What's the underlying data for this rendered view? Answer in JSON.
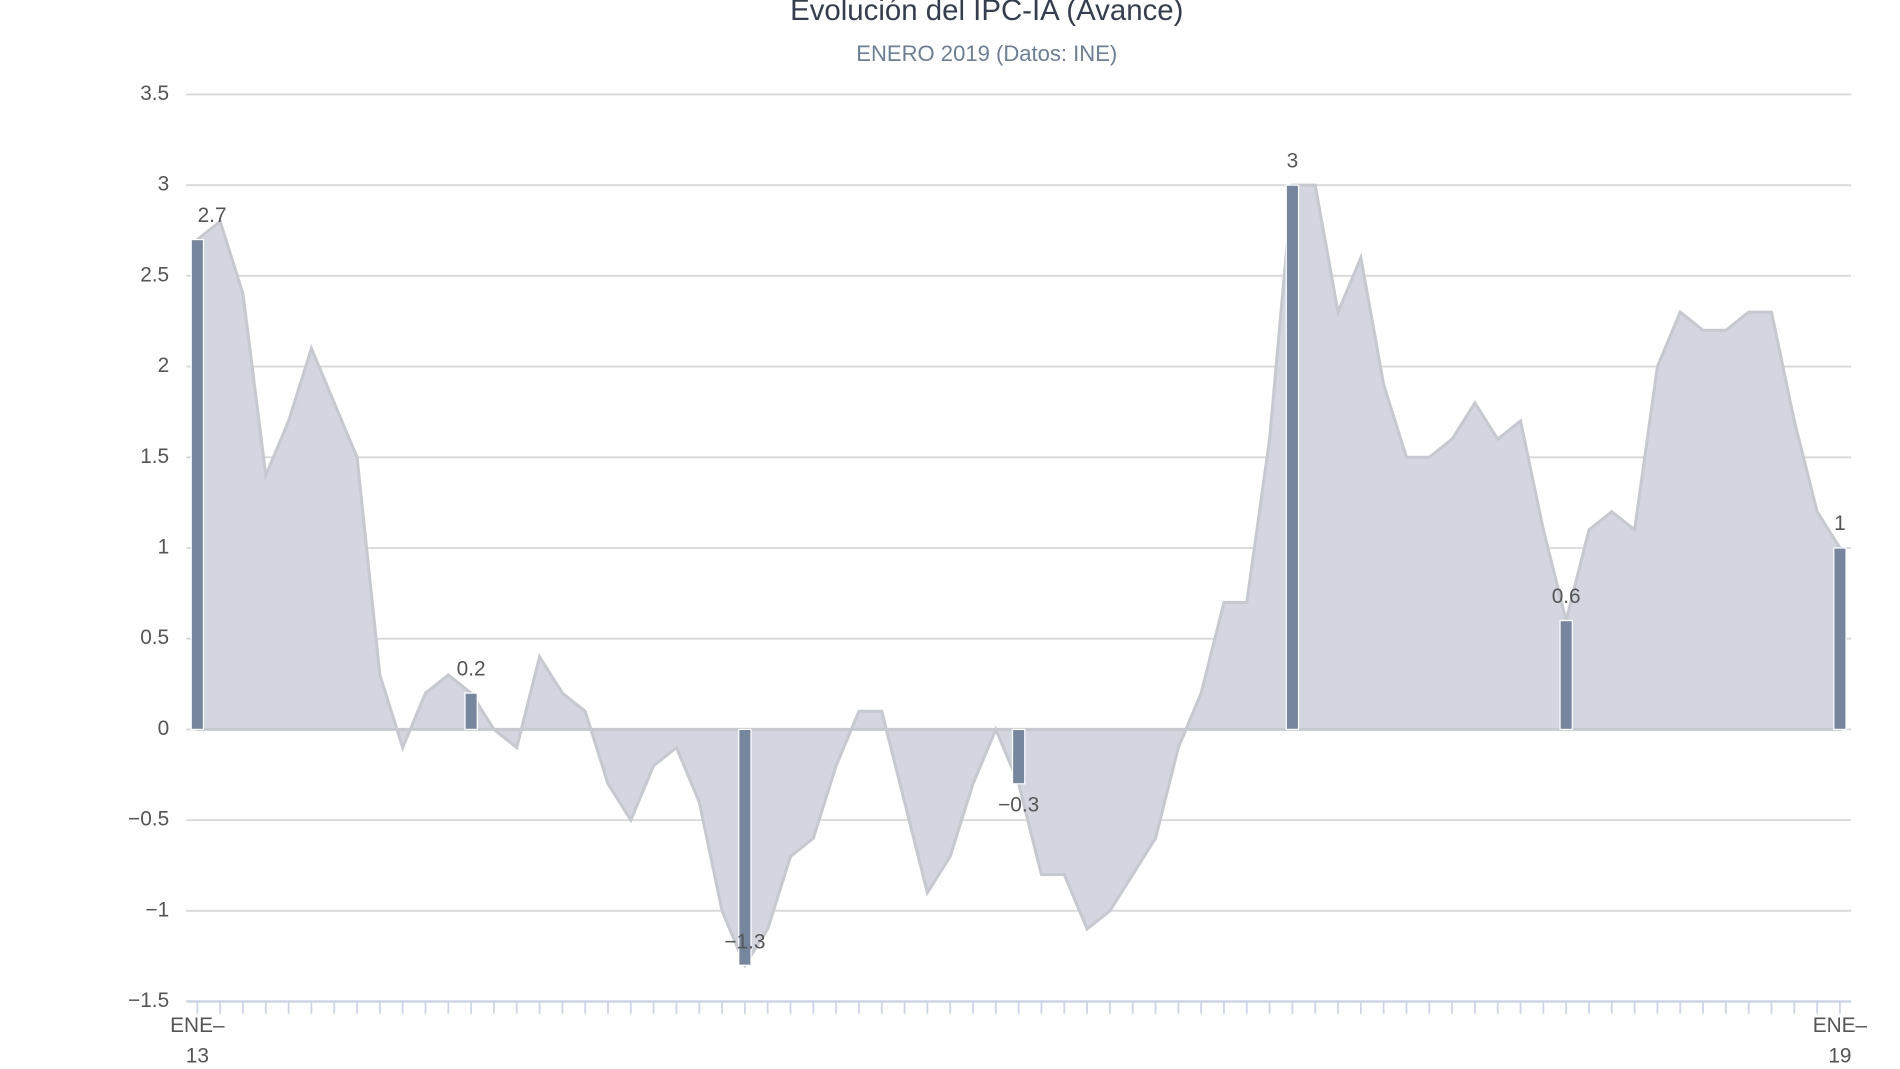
{
  "chart_data": {
    "type": "area",
    "title": "Evolución del IPC-IA (Avance)",
    "subtitle": "ENERO 2019 (Datos: INE)",
    "categories": [
      "ENE-13",
      null,
      null,
      null,
      null,
      null,
      null,
      null,
      null,
      null,
      null,
      null,
      null,
      null,
      null,
      null,
      null,
      null,
      null,
      null,
      null,
      null,
      null,
      null,
      null,
      null,
      null,
      null,
      null,
      null,
      null,
      null,
      null,
      null,
      null,
      null,
      null,
      null,
      null,
      null,
      null,
      null,
      null,
      null,
      null,
      null,
      null,
      null,
      null,
      null,
      null,
      null,
      null,
      null,
      null,
      null,
      null,
      null,
      null,
      null,
      null,
      null,
      null,
      null,
      null,
      null,
      null,
      null,
      null,
      null,
      null,
      null,
      "ENE-19"
    ],
    "series": [
      {
        "type": "area",
        "color": "#d3d6de",
        "values": [
          2.7,
          2.8,
          2.4,
          1.4,
          1.7,
          2.1,
          1.8,
          1.5,
          0.3,
          -0.1,
          0.2,
          0.3,
          0.2,
          0.0,
          -0.1,
          0.4,
          0.2,
          0.1,
          -0.3,
          -0.5,
          -0.2,
          -0.1,
          -0.4,
          -1.0,
          -1.3,
          -1.1,
          -0.7,
          -0.6,
          -0.2,
          0.1,
          0.1,
          -0.4,
          -0.9,
          -0.7,
          -0.3,
          0.0,
          -0.3,
          -0.8,
          -0.8,
          -1.1,
          -1.0,
          -0.8,
          -0.6,
          -0.1,
          0.2,
          0.7,
          0.7,
          1.6,
          3.0,
          3.0,
          2.3,
          2.6,
          1.9,
          1.5,
          1.5,
          1.6,
          1.8,
          1.6,
          1.7,
          1.1,
          0.6,
          1.1,
          1.2,
          1.1,
          2.0,
          2.3,
          2.2,
          2.2,
          2.3,
          2.3,
          1.7,
          1.2,
          1.0
        ]
      },
      {
        "type": "bar",
        "color": "#75869e",
        "values": [
          2.7,
          null,
          null,
          null,
          null,
          null,
          null,
          null,
          null,
          null,
          null,
          null,
          0.2,
          null,
          null,
          null,
          null,
          null,
          null,
          null,
          null,
          null,
          null,
          null,
          -1.3,
          null,
          null,
          null,
          null,
          null,
          null,
          null,
          null,
          null,
          null,
          null,
          -0.3,
          null,
          null,
          null,
          null,
          null,
          null,
          null,
          null,
          null,
          null,
          null,
          3,
          null,
          null,
          null,
          null,
          null,
          null,
          null,
          null,
          null,
          null,
          null,
          0.6,
          null,
          null,
          null,
          null,
          null,
          null,
          null,
          null,
          null,
          null,
          null,
          1
        ],
        "value_labels": [
          "2.7",
          null,
          null,
          null,
          null,
          null,
          null,
          null,
          null,
          null,
          null,
          null,
          "0.2",
          null,
          null,
          null,
          null,
          null,
          null,
          null,
          null,
          null,
          null,
          null,
          "−1.3",
          null,
          null,
          null,
          null,
          null,
          null,
          null,
          null,
          null,
          null,
          null,
          "−0.3",
          null,
          null,
          null,
          null,
          null,
          null,
          null,
          null,
          null,
          null,
          null,
          "3",
          null,
          null,
          null,
          null,
          null,
          null,
          null,
          null,
          null,
          null,
          null,
          "0.6",
          null,
          null,
          null,
          null,
          null,
          null,
          null,
          null,
          null,
          null,
          null,
          "1"
        ]
      }
    ],
    "ylim": [
      -1.5,
      3.5
    ],
    "yticks": [
      {
        "value": -1.5,
        "label": "−1.5"
      },
      {
        "value": -1,
        "label": "−1"
      },
      {
        "value": -0.5,
        "label": "−0.5"
      },
      0,
      0.5,
      1,
      1.5,
      2,
      2.5,
      3,
      3.5
    ],
    "grid": true
  }
}
